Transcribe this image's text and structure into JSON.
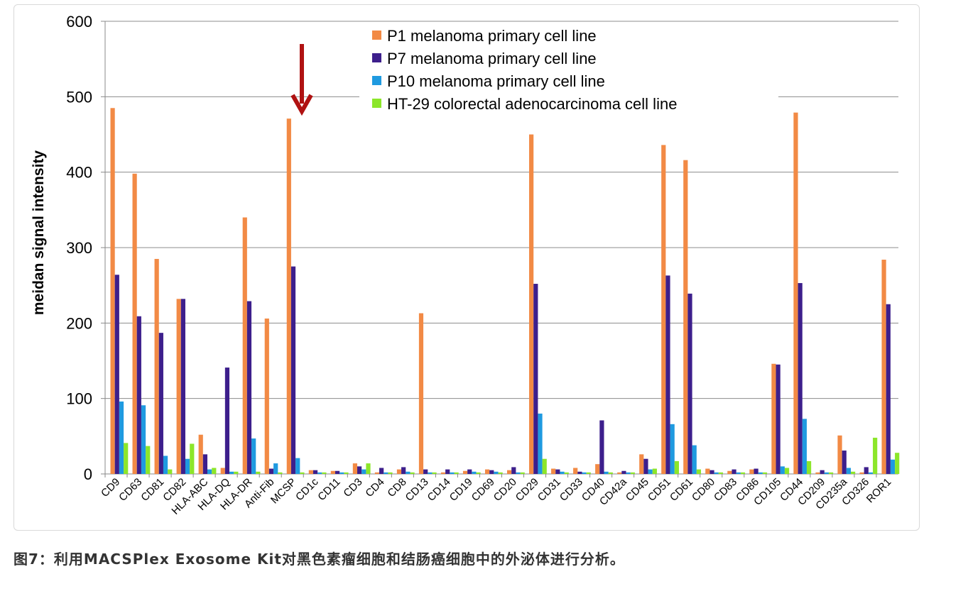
{
  "caption": "图7：利用MACSPlex Exosome Kit对黑色素瘤细胞和结肠癌细胞中的外泌体进行分析。",
  "chart_data": {
    "type": "bar",
    "title": "",
    "xlabel": "",
    "ylabel": "meidan signal intensity",
    "ylim": [
      0,
      600
    ],
    "yticks": [
      0,
      100,
      200,
      300,
      400,
      500,
      600
    ],
    "grid": true,
    "legend_position": "top-right",
    "categories": [
      "CD9",
      "CD63",
      "CD81",
      "CD82",
      "HLA-ABC",
      "HLA-DQ",
      "HLA-DR",
      "Anti-Fib",
      "MCSP",
      "CD1c",
      "CD11",
      "CD3",
      "CD4",
      "CD8",
      "CD13",
      "CD14",
      "CD19",
      "CD69",
      "CD20",
      "CD29",
      "CD31",
      "CD33",
      "CD40",
      "CD42a",
      "CD45",
      "CD51",
      "CD61",
      "CD80",
      "CD83",
      "CD86",
      "CD105",
      "CD44",
      "CD209",
      "CD235a",
      "CD326",
      "ROR1"
    ],
    "series": [
      {
        "name": "P1 melanoma primary cell line",
        "color": "#f28a45",
        "values": [
          485,
          398,
          285,
          232,
          52,
          8,
          340,
          206,
          471,
          5,
          4,
          14,
          2,
          6,
          213,
          2,
          4,
          6,
          5,
          450,
          7,
          8,
          13,
          2,
          26,
          436,
          416,
          7,
          4,
          6,
          146,
          479,
          2,
          51,
          2,
          284
        ]
      },
      {
        "name": "P7 melanoma primary cell line",
        "color": "#3d1f8c",
        "values": [
          264,
          209,
          187,
          232,
          26,
          141,
          229,
          7,
          275,
          5,
          4,
          10,
          8,
          9,
          6,
          6,
          6,
          5,
          9,
          252,
          6,
          3,
          71,
          4,
          20,
          263,
          239,
          5,
          6,
          7,
          145,
          253,
          5,
          31,
          9,
          225
        ]
      },
      {
        "name": "P10 melanoma primary cell line",
        "color": "#1f9ae0",
        "values": [
          96,
          91,
          24,
          20,
          6,
          3,
          47,
          14,
          21,
          2,
          2,
          6,
          2,
          3,
          2,
          2,
          3,
          3,
          2,
          80,
          3,
          2,
          3,
          2,
          6,
          66,
          38,
          2,
          2,
          2,
          10,
          73,
          2,
          8,
          2,
          19
        ]
      },
      {
        "name": "HT-29 colorectal adenocarcinoma cell line",
        "color": "#8ce62a",
        "values": [
          41,
          37,
          6,
          40,
          8,
          3,
          3,
          2,
          2,
          2,
          2,
          14,
          2,
          2,
          2,
          2,
          2,
          2,
          2,
          20,
          2,
          2,
          2,
          2,
          7,
          17,
          6,
          2,
          2,
          2,
          8,
          17,
          2,
          3,
          48,
          28
        ]
      }
    ],
    "annotations": [
      {
        "type": "arrow",
        "color": "#b01212",
        "points_to_category": "MCSP"
      }
    ]
  }
}
